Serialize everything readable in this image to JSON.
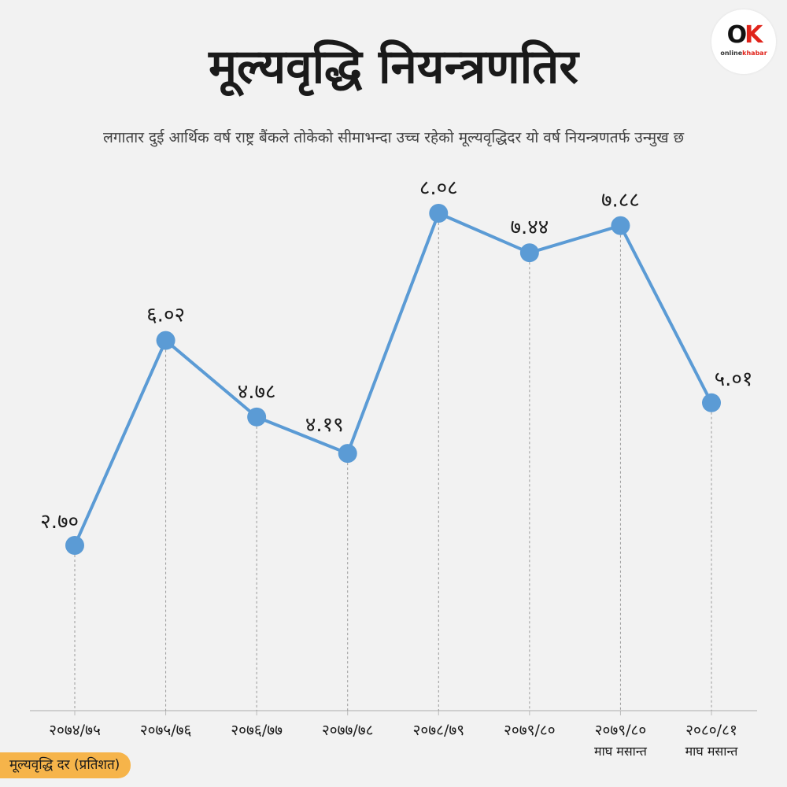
{
  "title": "मूल्यवृद्धि नियन्त्रणतिर",
  "subtitle": "लगातार दुई आर्थिक वर्ष राष्ट्र बैंकले तोकेको सीमाभन्दा उच्च रहेको मूल्यवृद्धिदर यो वर्ष नियन्त्रणतर्फ उन्मुख छ",
  "logo": {
    "mark_o": "O",
    "mark_k": "K",
    "text_prefix": "online",
    "text_brand": "khabar"
  },
  "colors": {
    "line": "#5b9bd5",
    "background": "#f2f2f2",
    "label_bg": "#f6b44a"
  },
  "chart_data": {
    "type": "line",
    "title": "मूल्यवृद्धि नियन्त्रणतिर",
    "subtitle": "लगातार दुई आर्थिक वर्ष राष्ट्र बैंकले तोकेको सीमाभन्दा उच्च रहेको मूल्यवृद्धिदर यो वर्ष नियन्त्रणतर्फ उन्मुख छ",
    "ylabel": "मूल्यवृद्धि दर (प्रतिशत)",
    "categories": [
      [
        "२०७४/७५"
      ],
      [
        "२०७५/७६"
      ],
      [
        "२०७६/७७"
      ],
      [
        "२०७७/७८"
      ],
      [
        "२०७८/७९"
      ],
      [
        "२०७९/८०"
      ],
      [
        "२०७९/८०",
        "माघ मसान्त"
      ],
      [
        "२०८०/८१",
        "माघ मसान्त"
      ]
    ],
    "values": [
      2.7,
      6.02,
      4.78,
      4.19,
      8.08,
      7.44,
      7.88,
      5.01
    ],
    "value_labels": [
      "२.७०",
      "६.०२",
      "४.७८",
      "४.१९",
      "८.०८",
      "७.४४",
      "७.८८",
      "५.०१"
    ],
    "ylim": [
      0,
      10
    ],
    "grid": false,
    "legend": "none"
  }
}
